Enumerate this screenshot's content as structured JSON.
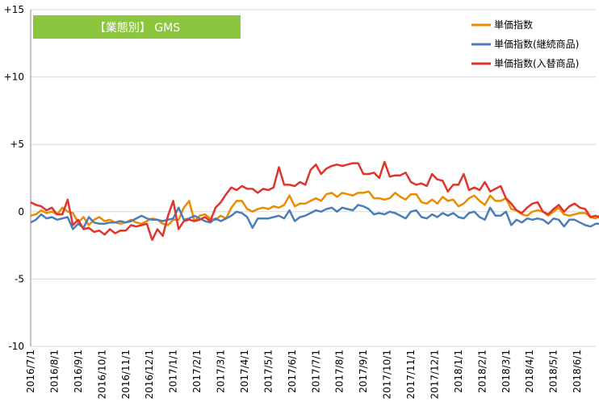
{
  "chart_data": {
    "type": "line",
    "title": "【業態別】 GMS",
    "xlabel": "",
    "ylabel": "",
    "ylim": [
      -10,
      15
    ],
    "y_ticks": [
      "-10",
      "-5",
      "0",
      "+5",
      "+10",
      "+15"
    ],
    "y_tick_values": [
      -10,
      -5,
      0,
      5,
      10,
      15
    ],
    "x_ticks": [
      "2016/7/1",
      "2016/8/1",
      "2016/9/1",
      "2016/10/1",
      "2016/11/1",
      "2016/12/1",
      "2017/1/1",
      "2017/2/1",
      "2017/3/1",
      "2017/4/1",
      "2017/5/1",
      "2017/6/1",
      "2017/7/1",
      "2017/8/1",
      "2017/9/1",
      "2017/10/1",
      "2017/11/1",
      "2017/12/1",
      "2018/1/1",
      "2018/2/1",
      "2018/3/1",
      "2018/4/1",
      "2018/5/1",
      "2018/6/1"
    ],
    "x_tick_weeks": [
      0,
      4.5,
      9,
      13.5,
      18,
      22.5,
      27,
      31.5,
      36,
      40.5,
      45,
      49.5,
      54,
      58.5,
      63,
      67.5,
      72,
      76.5,
      81,
      85.5,
      90,
      94.5,
      99,
      103.5
    ],
    "x_range_weeks": [
      0,
      107
    ],
    "grid": "horizontal-at-ticks",
    "legend_position": "top-right",
    "series": [
      {
        "name": "単価指数",
        "color": "#ED8B00",
        "values": [
          -0.3,
          -0.2,
          0.1,
          -0.1,
          0.0,
          -0.2,
          0.3,
          0.0,
          -0.1,
          -0.8,
          -0.4,
          -1.0,
          -0.6,
          -0.4,
          -0.7,
          -0.6,
          -0.8,
          -0.9,
          -0.8,
          -0.6,
          -0.8,
          -0.9,
          -0.7,
          -0.5,
          -0.6,
          -0.9,
          -1.0,
          -0.6,
          -0.6,
          0.3,
          0.8,
          -0.7,
          -0.3,
          -0.2,
          -0.5,
          -0.6,
          -0.3,
          -0.5,
          0.3,
          0.8,
          0.8,
          0.2,
          0.0,
          0.2,
          0.3,
          0.2,
          0.4,
          0.3,
          0.5,
          1.2,
          0.4,
          0.6,
          0.6,
          0.8,
          1.0,
          0.8,
          1.3,
          1.4,
          1.1,
          1.4,
          1.3,
          1.2,
          1.4,
          1.4,
          1.5,
          1.0,
          1.0,
          0.9,
          1.0,
          1.4,
          1.1,
          0.9,
          1.3,
          1.3,
          0.7,
          0.6,
          0.9,
          0.6,
          1.1,
          0.8,
          0.9,
          0.4,
          0.6,
          1.0,
          1.2,
          0.8,
          0.5,
          1.2,
          0.8,
          0.8,
          1.0,
          0.2,
          0.1,
          -0.2,
          -0.3,
          0.0,
          0.1,
          0.0,
          -0.3,
          0.0,
          0.3,
          -0.2,
          -0.3,
          -0.2,
          -0.1,
          -0.1,
          -0.4,
          -0.5,
          -0.2
        ]
      },
      {
        "name": "単価指数(継続商品)",
        "color": "#4A7EBB",
        "values": [
          -0.8,
          -0.6,
          -0.2,
          -0.5,
          -0.4,
          -0.6,
          -0.5,
          -0.4,
          -1.3,
          -0.9,
          -1.2,
          -0.4,
          -0.8,
          -0.9,
          -0.9,
          -0.8,
          -0.8,
          -0.7,
          -0.8,
          -0.7,
          -0.5,
          -0.3,
          -0.5,
          -0.6,
          -0.6,
          -0.7,
          -0.6,
          -0.5,
          0.3,
          -0.6,
          -0.5,
          -0.3,
          -0.5,
          -0.7,
          -0.8,
          -0.5,
          -0.7,
          -0.5,
          -0.3,
          0.0,
          -0.1,
          -0.4,
          -1.2,
          -0.5,
          -0.5,
          -0.5,
          -0.4,
          -0.3,
          -0.5,
          0.1,
          -0.7,
          -0.4,
          -0.3,
          -0.1,
          0.1,
          0.0,
          0.2,
          0.3,
          0.0,
          0.3,
          0.2,
          0.1,
          0.5,
          0.4,
          0.2,
          -0.2,
          -0.1,
          -0.2,
          0.0,
          -0.1,
          -0.3,
          -0.5,
          0.0,
          0.1,
          -0.4,
          -0.5,
          -0.2,
          -0.4,
          -0.1,
          -0.3,
          -0.1,
          -0.4,
          -0.5,
          -0.1,
          0.0,
          -0.4,
          -0.6,
          0.3,
          -0.3,
          -0.3,
          0.0,
          -1.0,
          -0.6,
          -0.8,
          -0.5,
          -0.6,
          -0.5,
          -0.6,
          -0.9,
          -0.5,
          -0.6,
          -1.1,
          -0.6,
          -0.6,
          -0.8,
          -1.0,
          -1.1,
          -0.9,
          -0.9
        ]
      },
      {
        "name": "単価指数(入替商品)",
        "color": "#E0342C",
        "values": [
          0.7,
          0.5,
          0.4,
          0.1,
          0.3,
          -0.2,
          -0.2,
          0.9,
          -1.0,
          -0.6,
          -1.3,
          -1.2,
          -1.5,
          -1.4,
          -1.7,
          -1.3,
          -1.6,
          -1.4,
          -1.4,
          -1.0,
          -1.1,
          -1.0,
          -0.9,
          -2.1,
          -1.3,
          -1.8,
          -0.3,
          0.8,
          -1.3,
          -0.7,
          -0.6,
          -0.7,
          -0.6,
          -0.4,
          -0.7,
          0.3,
          0.7,
          1.3,
          1.8,
          1.6,
          1.9,
          1.7,
          1.7,
          1.4,
          1.7,
          1.6,
          1.8,
          3.3,
          2.0,
          2.0,
          1.9,
          2.2,
          2.0,
          3.1,
          3.5,
          2.8,
          3.2,
          3.4,
          3.5,
          3.4,
          3.5,
          3.6,
          3.6,
          2.8,
          2.8,
          2.9,
          2.5,
          3.7,
          2.6,
          2.7,
          2.7,
          2.9,
          2.2,
          2.0,
          2.1,
          1.9,
          2.8,
          2.4,
          2.3,
          1.5,
          2.0,
          2.0,
          2.8,
          1.6,
          1.8,
          1.6,
          2.2,
          1.5,
          1.7,
          1.9,
          1.0,
          0.6,
          0.1,
          -0.1,
          0.3,
          0.6,
          0.7,
          0.0,
          -0.2,
          0.2,
          0.5,
          0.0,
          0.4,
          0.6,
          0.3,
          0.2,
          -0.4,
          -0.3,
          -0.5
        ]
      }
    ]
  }
}
